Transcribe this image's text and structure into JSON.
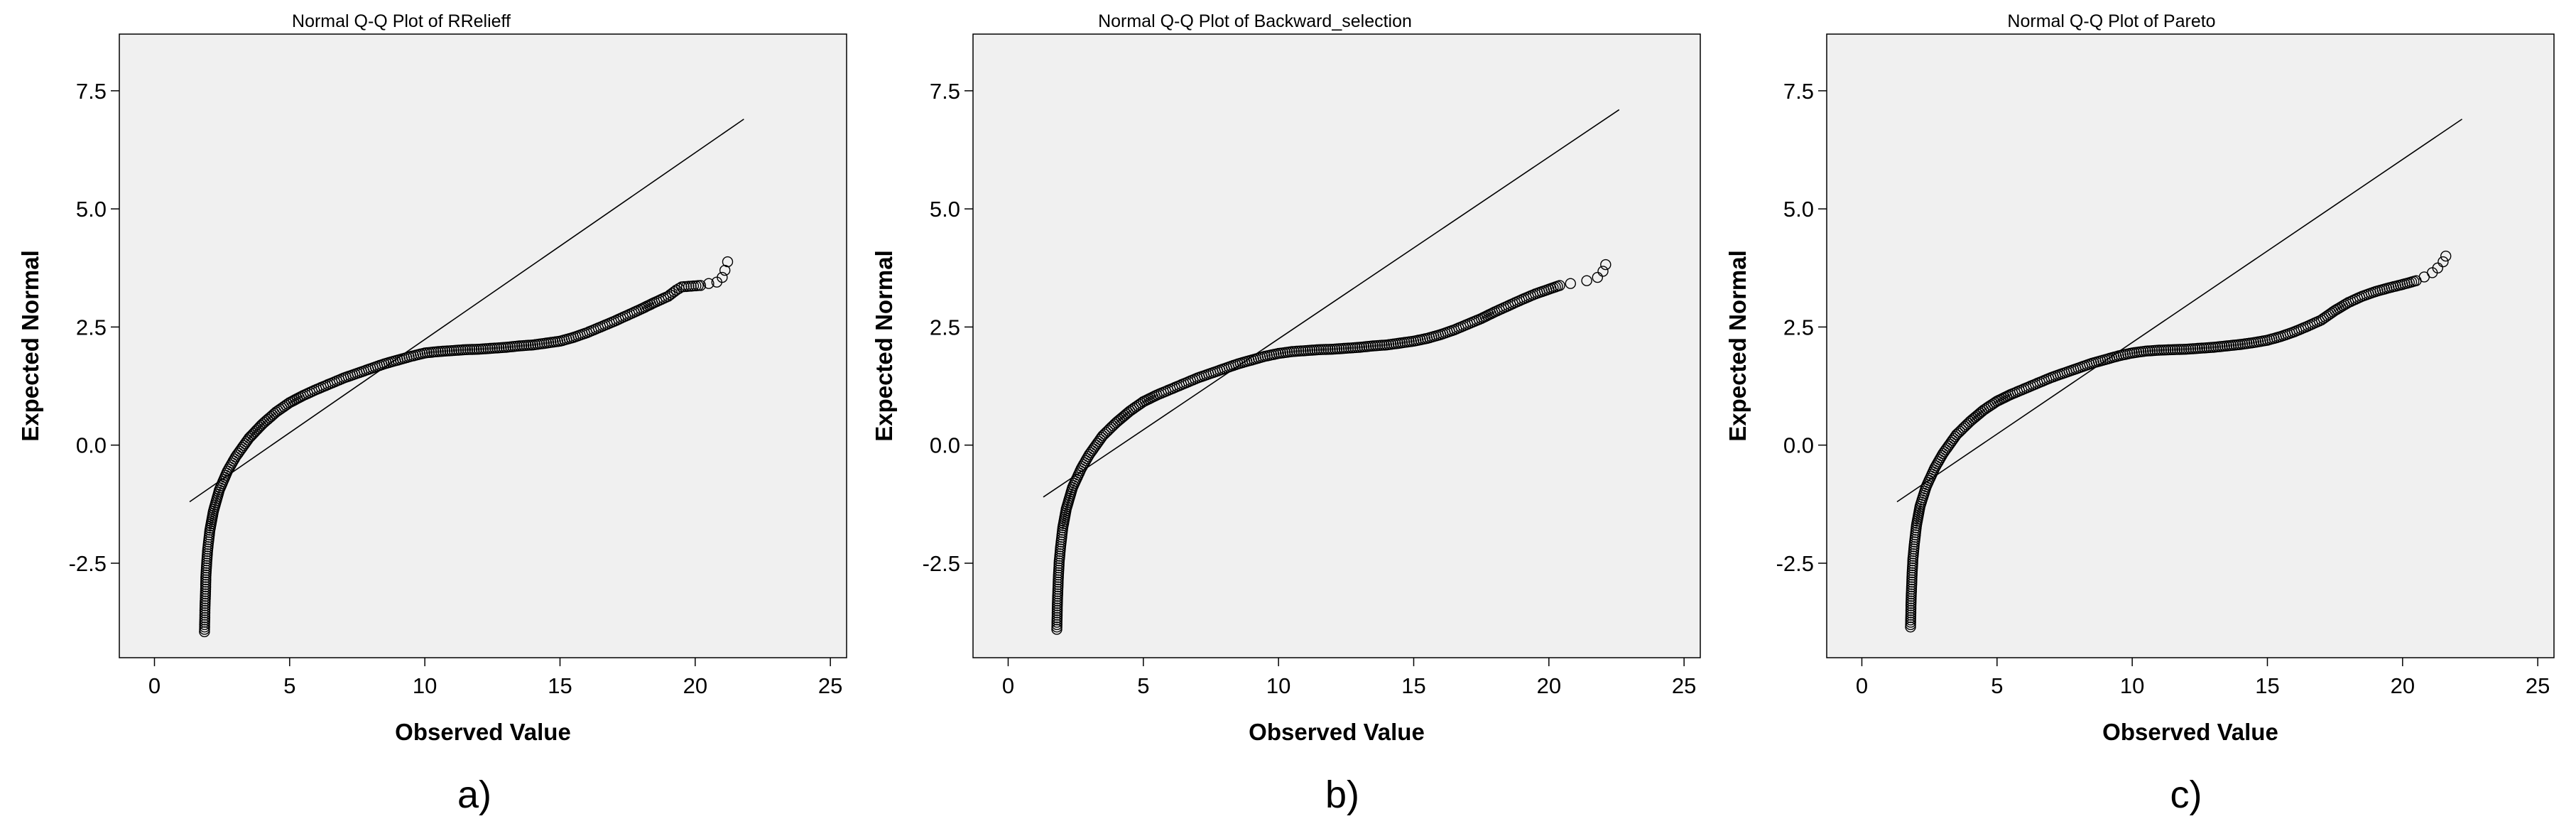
{
  "chart_data": [
    {
      "type": "scatter",
      "panel_label": "a)",
      "title": "Normal Q-Q Plot of RRelieff",
      "xlabel": "Observed Value",
      "ylabel": "Expected Normal",
      "xlim": [
        -1.3,
        25.6
      ],
      "ylim": [
        -4.5,
        8.7
      ],
      "xticks": [
        0,
        5,
        10,
        15,
        20,
        25
      ],
      "yticks": [
        -2.5,
        0.0,
        2.5,
        5.0,
        7.5
      ],
      "xtick_labels": [
        "0",
        "5",
        "10",
        "15",
        "20",
        "25"
      ],
      "ytick_labels": [
        "-2.5",
        "0.0",
        "2.5",
        "5.0",
        "7.5"
      ],
      "grid": false,
      "reference_line": {
        "x": [
          1.3,
          21.8
        ],
        "y": [
          -1.2,
          6.9
        ]
      },
      "series": [
        {
          "x": [
            1.85,
            1.86,
            1.87,
            1.89,
            1.9,
            1.93,
            1.97,
            2.05,
            2.18,
            2.4,
            2.7,
            3.0,
            3.5,
            4.0,
            4.5,
            5.0,
            5.5,
            6.0,
            6.5,
            7.0,
            7.5,
            8.0,
            8.5,
            9.0,
            9.5,
            10.0,
            10.5,
            11.0,
            11.5,
            12.0,
            12.5,
            13.0,
            13.5,
            14.0,
            14.5,
            15.0,
            15.5,
            16.0,
            16.5,
            17.0,
            17.5,
            18.0,
            18.5,
            19.0,
            19.3,
            19.5,
            20.2,
            20.5,
            20.8,
            21.0,
            21.1,
            21.2
          ],
          "y": [
            -3.95,
            -3.7,
            -3.4,
            -3.1,
            -2.8,
            -2.5,
            -2.2,
            -1.8,
            -1.4,
            -0.95,
            -0.55,
            -0.25,
            0.15,
            0.45,
            0.7,
            0.9,
            1.05,
            1.18,
            1.3,
            1.42,
            1.52,
            1.62,
            1.72,
            1.8,
            1.88,
            1.95,
            1.98,
            2.0,
            2.02,
            2.03,
            2.05,
            2.07,
            2.1,
            2.12,
            2.16,
            2.2,
            2.28,
            2.38,
            2.5,
            2.62,
            2.75,
            2.88,
            3.02,
            3.15,
            3.28,
            3.35,
            3.38,
            3.42,
            3.45,
            3.55,
            3.7,
            3.88
          ]
        }
      ]
    },
    {
      "type": "scatter",
      "panel_label": "b)",
      "title": "Normal Q-Q Plot of Backward_selection",
      "xlabel": "Observed Value",
      "ylabel": "Expected Normal",
      "xlim": [
        -1.3,
        25.6
      ],
      "ylim": [
        -4.5,
        8.7
      ],
      "xticks": [
        0,
        5,
        10,
        15,
        20,
        25
      ],
      "yticks": [
        -2.5,
        0.0,
        2.5,
        5.0,
        7.5
      ],
      "xtick_labels": [
        "0",
        "5",
        "10",
        "15",
        "20",
        "25"
      ],
      "ytick_labels": [
        "-2.5",
        "0.0",
        "2.5",
        "5.0",
        "7.5"
      ],
      "grid": false,
      "reference_line": {
        "x": [
          1.3,
          22.6
        ],
        "y": [
          -1.1,
          7.1
        ]
      },
      "series": [
        {
          "x": [
            1.8,
            1.81,
            1.82,
            1.84,
            1.86,
            1.89,
            1.94,
            2.02,
            2.15,
            2.38,
            2.7,
            3.0,
            3.5,
            4.0,
            4.5,
            5.0,
            5.5,
            6.0,
            6.5,
            7.0,
            7.5,
            8.0,
            8.5,
            9.0,
            9.5,
            10.0,
            10.5,
            11.0,
            11.5,
            12.0,
            12.5,
            13.0,
            13.5,
            14.0,
            14.5,
            15.0,
            15.5,
            16.0,
            16.5,
            17.0,
            17.5,
            18.0,
            18.5,
            19.0,
            19.5,
            20.0,
            20.4,
            20.8,
            21.4,
            21.8,
            22.0,
            22.1
          ],
          "y": [
            -3.9,
            -3.65,
            -3.35,
            -3.05,
            -2.75,
            -2.45,
            -2.15,
            -1.75,
            -1.35,
            -0.9,
            -0.5,
            -0.2,
            0.2,
            0.48,
            0.72,
            0.92,
            1.06,
            1.18,
            1.3,
            1.42,
            1.52,
            1.62,
            1.72,
            1.8,
            1.88,
            1.94,
            1.98,
            2.0,
            2.02,
            2.03,
            2.05,
            2.07,
            2.1,
            2.12,
            2.16,
            2.2,
            2.26,
            2.34,
            2.44,
            2.56,
            2.68,
            2.82,
            2.95,
            3.08,
            3.2,
            3.3,
            3.38,
            3.42,
            3.48,
            3.55,
            3.68,
            3.82
          ]
        }
      ]
    },
    {
      "type": "scatter",
      "panel_label": "c)",
      "title": "Normal Q-Q Plot of Pareto",
      "xlabel": "Observed Value",
      "ylabel": "Expected Normal",
      "xlim": [
        -1.3,
        25.6
      ],
      "ylim": [
        -4.5,
        8.7
      ],
      "xticks": [
        0,
        5,
        10,
        15,
        20,
        25
      ],
      "yticks": [
        -2.5,
        0.0,
        2.5,
        5.0,
        7.5
      ],
      "xtick_labels": [
        "0",
        "5",
        "10",
        "15",
        "20",
        "25"
      ],
      "ytick_labels": [
        "-2.5",
        "0.0",
        "2.5",
        "5.0",
        "7.5"
      ],
      "grid": false,
      "reference_line": {
        "x": [
          1.3,
          22.2
        ],
        "y": [
          -1.2,
          6.9
        ]
      },
      "series": [
        {
          "x": [
            1.8,
            1.81,
            1.82,
            1.84,
            1.86,
            1.89,
            1.94,
            2.02,
            2.15,
            2.38,
            2.7,
            3.0,
            3.5,
            4.0,
            4.5,
            5.0,
            5.5,
            6.0,
            6.5,
            7.0,
            7.5,
            8.0,
            8.5,
            9.0,
            9.5,
            10.0,
            10.5,
            11.0,
            11.5,
            12.0,
            12.5,
            13.0,
            13.5,
            14.0,
            14.5,
            15.0,
            15.5,
            16.0,
            16.5,
            17.0,
            17.5,
            18.0,
            18.5,
            19.0,
            19.5,
            20.0,
            20.5,
            20.8,
            21.1,
            21.3,
            21.5,
            21.6
          ],
          "y": [
            -3.85,
            -3.6,
            -3.3,
            -3.0,
            -2.7,
            -2.4,
            -2.1,
            -1.7,
            -1.3,
            -0.88,
            -0.48,
            -0.18,
            0.22,
            0.5,
            0.74,
            0.93,
            1.07,
            1.19,
            1.31,
            1.43,
            1.53,
            1.63,
            1.73,
            1.81,
            1.89,
            1.95,
            1.99,
            2.01,
            2.02,
            2.03,
            2.05,
            2.07,
            2.1,
            2.13,
            2.17,
            2.22,
            2.3,
            2.4,
            2.52,
            2.65,
            2.85,
            3.02,
            3.15,
            3.25,
            3.33,
            3.4,
            3.48,
            3.56,
            3.65,
            3.75,
            3.88,
            4.0
          ]
        }
      ]
    }
  ]
}
